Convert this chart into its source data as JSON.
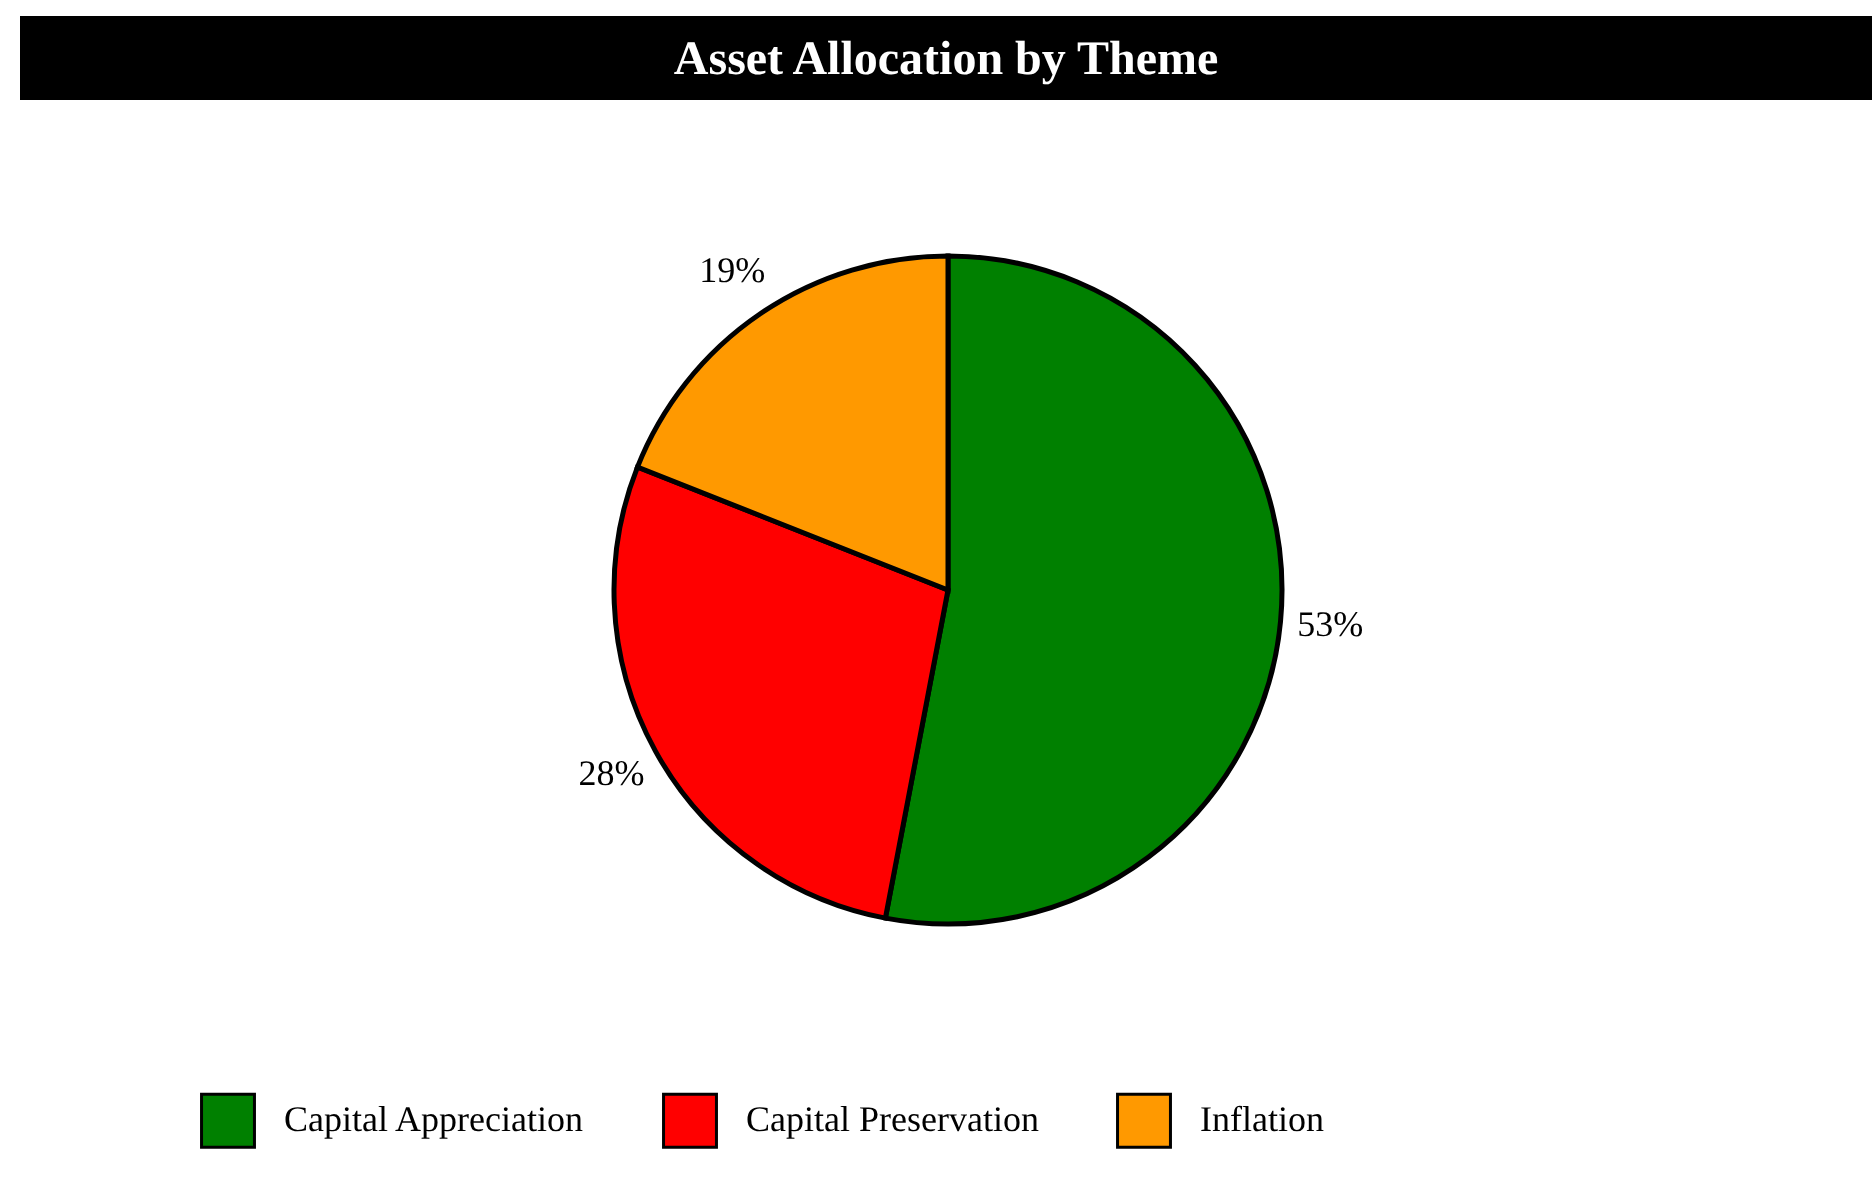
{
  "chart_data": {
    "type": "pie",
    "title": "Asset Allocation by Theme",
    "categories": [
      "Capital Appreciation",
      "Capital Preservation",
      "Inflation"
    ],
    "values": [
      53,
      28,
      19
    ],
    "colors": [
      "#008000",
      "#ff0000",
      "#ff9900"
    ],
    "value_labels": [
      "53%",
      "28%",
      "19%"
    ],
    "legend": "bottom"
  }
}
